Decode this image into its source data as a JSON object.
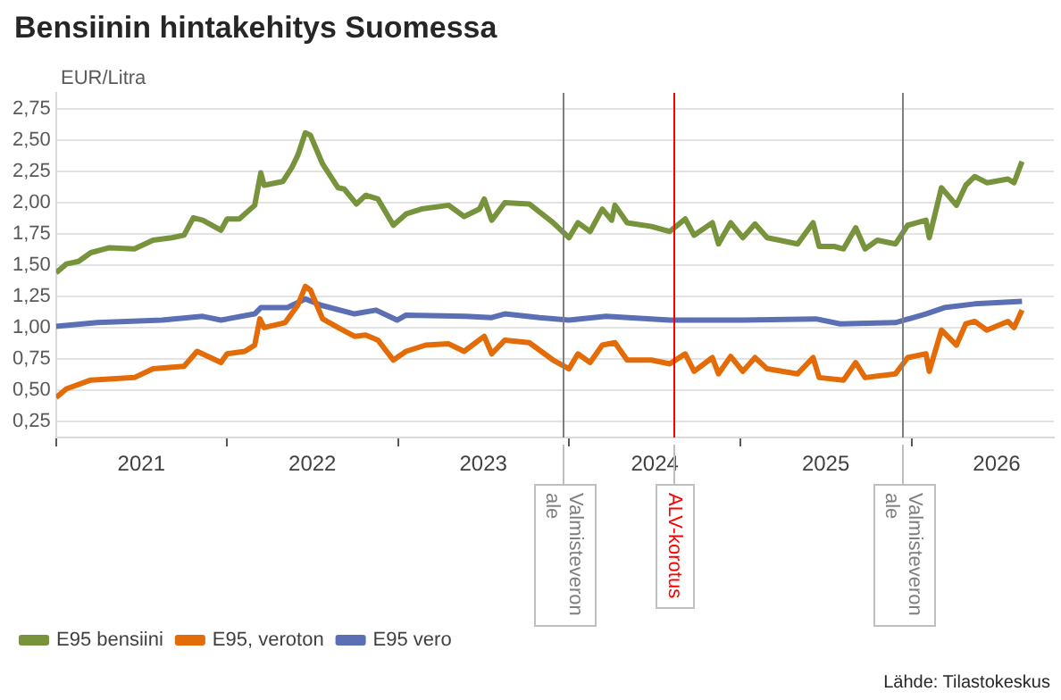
{
  "chart_data": {
    "type": "line",
    "title": "Bensiinin hintakehitys Suomessa",
    "ylabel": "EUR/Litra",
    "xlim": [
      "2021-01-01",
      "2026-11-01"
    ],
    "xticks": [
      {
        "value": "2021-01-01",
        "label": null
      },
      {
        "value": "2021-07-02",
        "label": "2021"
      },
      {
        "value": "2022-01-01",
        "label": null
      },
      {
        "value": "2022-07-02",
        "label": "2022"
      },
      {
        "value": "2023-01-01",
        "label": null
      },
      {
        "value": "2023-07-02",
        "label": "2023"
      },
      {
        "value": "2024-01-01",
        "label": null
      },
      {
        "value": "2024-07-02",
        "label": "2024"
      },
      {
        "value": "2025-01-01",
        "label": null
      },
      {
        "value": "2025-07-02",
        "label": "2025"
      },
      {
        "value": "2026-01-01",
        "label": null
      },
      {
        "value": "2026-07-02",
        "label": "2026"
      }
    ],
    "ylim": [
      0.12,
      2.88
    ],
    "yticks": [
      {
        "value": 0.25,
        "label": "0,25"
      },
      {
        "value": 0.5,
        "label": "0,50"
      },
      {
        "value": 0.75,
        "label": "0,75"
      },
      {
        "value": 1,
        "label": "1,00"
      },
      {
        "value": 1.25,
        "label": "1,25"
      },
      {
        "value": 1.5,
        "label": "1,50"
      },
      {
        "value": 1.75,
        "label": "1,75"
      },
      {
        "value": 2,
        "label": "2,00"
      },
      {
        "value": 2.25,
        "label": "2,25"
      },
      {
        "value": 2.5,
        "label": "2,50"
      },
      {
        "value": 2.75,
        "label": "2,75"
      }
    ],
    "grid": "y",
    "legend": "bottom left",
    "marker": "none",
    "line_style": "solid",
    "series": [
      {
        "name": "E95 bensiini",
        "color": "#77933c",
        "x": [
          "2021-01-01",
          "2021-01-23",
          "2021-02-18",
          "2021-03-16",
          "2021-04-25",
          "2021-06-17",
          "2021-07-27",
          "2021-09-05",
          "2021-10-01",
          "2021-10-21",
          "2021-11-10",
          "2021-12-19",
          "2022-01-01",
          "2022-01-27",
          "2022-03-01",
          "2022-03-14",
          "2022-03-21",
          "2022-04-30",
          "2022-05-19",
          "2022-06-01",
          "2022-06-17",
          "2022-06-28",
          "2022-07-24",
          "2022-08-26",
          "2022-09-08",
          "2022-10-04",
          "2022-10-24",
          "2022-11-19",
          "2022-12-22",
          "2023-01-18",
          "2023-02-20",
          "2023-04-19",
          "2023-05-22",
          "2023-06-24",
          "2023-07-04",
          "2023-07-20",
          "2023-08-17",
          "2023-10-08",
          "2023-11-28",
          "2024-01-01",
          "2024-01-20",
          "2024-02-15",
          "2024-03-12",
          "2024-04-01",
          "2024-04-08",
          "2024-05-04",
          "2024-06-25",
          "2024-08-03",
          "2024-09-05",
          "2024-09-24",
          "2024-11-02",
          "2024-11-15",
          "2024-12-11",
          "2025-01-06",
          "2025-02-01",
          "2025-02-27",
          "2025-03-25",
          "2025-05-03",
          "2025-06-05",
          "2025-06-18",
          "2025-07-20",
          "2025-08-09",
          "2025-09-04",
          "2025-09-24",
          "2025-10-20",
          "2025-11-28",
          "2025-12-24",
          "2026-02-01",
          "2026-02-08",
          "2026-03-06",
          "2026-04-07",
          "2026-04-27",
          "2026-05-16",
          "2026-06-11",
          "2026-07-26",
          "2026-08-08",
          "2026-08-25"
        ],
        "values": [
          1.44,
          1.51,
          1.53,
          1.6,
          1.64,
          1.63,
          1.7,
          1.72,
          1.74,
          1.88,
          1.86,
          1.78,
          1.87,
          1.87,
          1.98,
          2.24,
          2.14,
          2.17,
          2.28,
          2.38,
          2.56,
          2.54,
          2.31,
          2.12,
          2.11,
          1.99,
          2.06,
          2.03,
          1.82,
          1.91,
          1.95,
          1.98,
          1.89,
          1.95,
          2.03,
          1.86,
          2.0,
          1.99,
          1.84,
          1.72,
          1.84,
          1.77,
          1.95,
          1.86,
          1.98,
          1.84,
          1.81,
          1.77,
          1.87,
          1.74,
          1.84,
          1.67,
          1.84,
          1.72,
          1.83,
          1.72,
          1.7,
          1.67,
          1.84,
          1.65,
          1.65,
          1.63,
          1.8,
          1.63,
          1.7,
          1.67,
          1.82,
          1.86,
          1.72,
          2.12,
          1.98,
          2.14,
          2.21,
          2.16,
          2.19,
          2.16,
          2.33
        ]
      },
      {
        "name": "E95, veroton",
        "color": "#e36c09",
        "x": [
          "2021-01-01",
          "2021-01-23",
          "2021-03-16",
          "2021-06-17",
          "2021-07-27",
          "2021-10-01",
          "2021-10-29",
          "2021-12-19",
          "2022-01-01",
          "2022-02-08",
          "2022-03-01",
          "2022-03-12",
          "2022-03-21",
          "2022-05-05",
          "2022-06-01",
          "2022-06-17",
          "2022-06-28",
          "2022-07-24",
          "2022-08-26",
          "2022-09-30",
          "2022-10-24",
          "2022-11-19",
          "2022-12-22",
          "2023-01-18",
          "2023-03-01",
          "2023-04-19",
          "2023-05-22",
          "2023-07-04",
          "2023-07-20",
          "2023-08-17",
          "2023-10-08",
          "2023-11-28",
          "2024-01-01",
          "2024-01-20",
          "2024-02-15",
          "2024-03-12",
          "2024-04-08",
          "2024-05-04",
          "2024-06-25",
          "2024-08-03",
          "2024-09-05",
          "2024-09-24",
          "2024-11-02",
          "2024-11-15",
          "2024-12-11",
          "2025-01-06",
          "2025-02-01",
          "2025-02-27",
          "2025-05-03",
          "2025-06-05",
          "2025-06-18",
          "2025-08-09",
          "2025-09-04",
          "2025-09-24",
          "2025-11-28",
          "2025-12-24",
          "2026-02-01",
          "2026-02-08",
          "2026-03-06",
          "2026-04-07",
          "2026-04-27",
          "2026-05-16",
          "2026-06-11",
          "2026-07-26",
          "2026-08-08",
          "2026-08-25"
        ],
        "values": [
          0.44,
          0.51,
          0.58,
          0.6,
          0.67,
          0.69,
          0.81,
          0.72,
          0.79,
          0.81,
          0.86,
          1.07,
          1.0,
          1.04,
          1.18,
          1.33,
          1.3,
          1.07,
          1.0,
          0.93,
          0.94,
          0.9,
          0.74,
          0.81,
          0.86,
          0.87,
          0.81,
          0.93,
          0.79,
          0.9,
          0.88,
          0.74,
          0.67,
          0.79,
          0.72,
          0.86,
          0.88,
          0.74,
          0.74,
          0.71,
          0.79,
          0.65,
          0.76,
          0.63,
          0.77,
          0.65,
          0.76,
          0.67,
          0.63,
          0.76,
          0.6,
          0.58,
          0.72,
          0.6,
          0.63,
          0.76,
          0.79,
          0.65,
          0.98,
          0.86,
          1.03,
          1.05,
          0.98,
          1.05,
          1.0,
          1.14
        ]
      },
      {
        "name": "E95 vero",
        "color": "#5b6fb5",
        "x": [
          "2021-01-01",
          "2021-03-30",
          "2021-08-15",
          "2021-11-10",
          "2021-12-19",
          "2022-03-01",
          "2022-03-14",
          "2022-05-10",
          "2022-06-17",
          "2022-07-20",
          "2022-09-30",
          "2022-11-15",
          "2022-12-30",
          "2023-01-18",
          "2023-05-25",
          "2023-07-20",
          "2023-08-17",
          "2023-10-30",
          "2024-01-01",
          "2024-03-20",
          "2024-08-03",
          "2025-01-06",
          "2025-06-11",
          "2025-08-02",
          "2025-11-28",
          "2026-02-01",
          "2026-03-12",
          "2026-05-16",
          "2026-08-25"
        ],
        "values": [
          1.01,
          1.04,
          1.06,
          1.09,
          1.06,
          1.11,
          1.16,
          1.16,
          1.23,
          1.18,
          1.11,
          1.14,
          1.06,
          1.1,
          1.09,
          1.08,
          1.11,
          1.08,
          1.06,
          1.09,
          1.06,
          1.06,
          1.07,
          1.03,
          1.04,
          1.11,
          1.16,
          1.19,
          1.21
        ]
      }
    ],
    "ref_lines": [
      {
        "axis": "x",
        "value": "2023-12-17",
        "label": "Valmisteveron ale",
        "color": "#7f7f7f"
      },
      {
        "axis": "x",
        "value": "2024-08-12",
        "label": "ALV-korotus",
        "color": "#ff0000"
      },
      {
        "axis": "x",
        "value": "2025-12-10",
        "label": "Valmisteveron ale",
        "color": "#7f7f7f"
      }
    ],
    "annotations": [
      "Lähde: Tilastokeskus"
    ]
  }
}
